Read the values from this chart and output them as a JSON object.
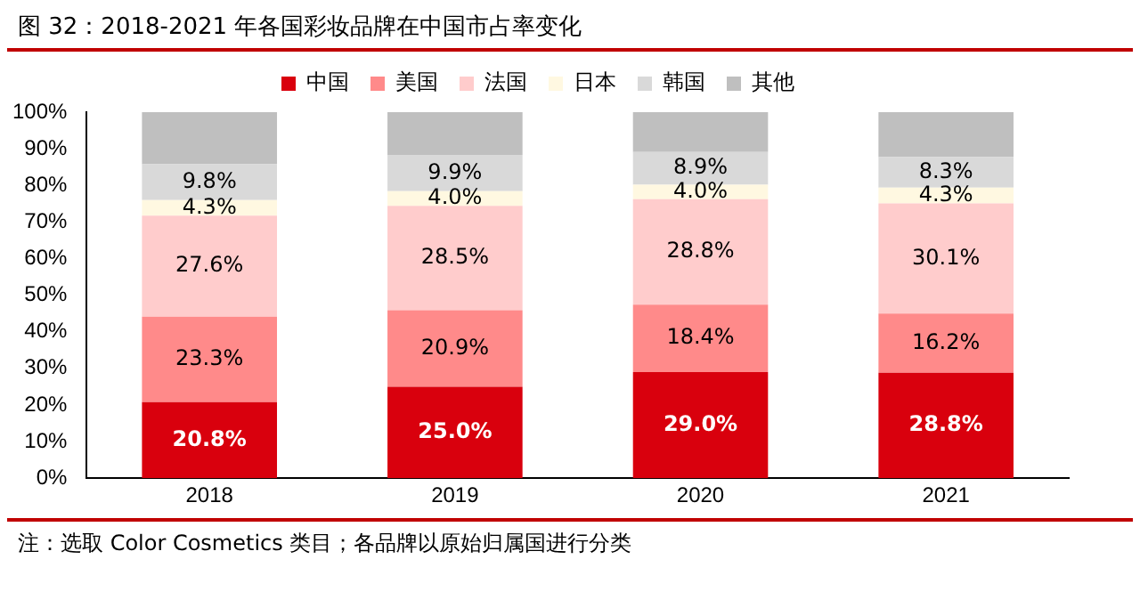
{
  "chart_data": {
    "type": "bar",
    "title": "图 32：2018-2021 年各国彩妆品牌在中国市占率变化",
    "categories": [
      "2018",
      "2019",
      "2020",
      "2021"
    ],
    "stacked": true,
    "legend": "top",
    "grid": false,
    "ylim": [
      0,
      100
    ],
    "yticks": [
      {
        "value": 0,
        "label": "0%"
      },
      {
        "value": 10,
        "label": "10%"
      },
      {
        "value": 20,
        "label": "20%"
      },
      {
        "value": 30,
        "label": "30%"
      },
      {
        "value": 40,
        "label": "40%"
      },
      {
        "value": 50,
        "label": "50%"
      },
      {
        "value": 60,
        "label": "60%"
      },
      {
        "value": 70,
        "label": "70%"
      },
      {
        "value": 80,
        "label": "80%"
      },
      {
        "value": 90,
        "label": "90%"
      },
      {
        "value": 100,
        "label": "100%"
      }
    ],
    "series": [
      {
        "name": "中国",
        "color": "#d9000d",
        "values": [
          20.8,
          25.0,
          29.0,
          28.8
        ],
        "value_labels": [
          "20.8%",
          "25.0%",
          "29.0%",
          "28.8%"
        ]
      },
      {
        "name": "美国",
        "color": "#ff8a8a",
        "values": [
          23.3,
          20.9,
          18.4,
          16.2
        ],
        "value_labels": [
          "23.3%",
          "20.9%",
          "18.4%",
          "16.2%"
        ]
      },
      {
        "name": "法国",
        "color": "#ffcccc",
        "values": [
          27.6,
          28.5,
          28.8,
          30.1
        ],
        "value_labels": [
          "27.6%",
          "28.5%",
          "28.8%",
          "30.1%"
        ]
      },
      {
        "name": "日本",
        "color": "#fff8e1",
        "values": [
          4.3,
          4.0,
          4.0,
          4.3
        ],
        "value_labels": [
          "4.3%",
          "4.0%",
          "4.0%",
          "4.3%"
        ]
      },
      {
        "name": "韩国",
        "color": "#d9d9d9",
        "values": [
          9.8,
          9.9,
          8.9,
          8.3
        ],
        "value_labels": [
          "9.8%",
          "9.9%",
          "8.9%",
          "8.3%"
        ]
      },
      {
        "name": "其他",
        "color": "#bfbfbf",
        "values": [
          14.2,
          11.7,
          10.9,
          12.3
        ]
      }
    ],
    "annotations": [
      "注：选取 Color Cosmetics 类目；各品牌以原始归属国进行分类"
    ]
  }
}
